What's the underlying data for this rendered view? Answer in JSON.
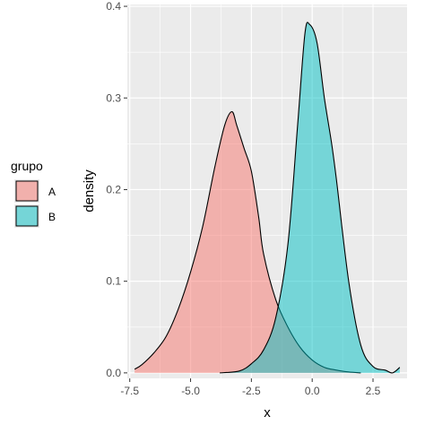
{
  "chart_data": {
    "type": "area",
    "subtype": "density",
    "xlabel": "x",
    "ylabel": "density",
    "xlim": [
      -7.6,
      3.9
    ],
    "ylim": [
      -0.006,
      0.402
    ],
    "x_ticks": [
      -7.5,
      -5.0,
      -2.5,
      0.0,
      2.5
    ],
    "x_tick_labels": [
      "-7.5",
      "-5.0",
      "-2.5",
      "0.0",
      "2.5"
    ],
    "y_ticks": [
      0.0,
      0.1,
      0.2,
      0.3,
      0.4
    ],
    "y_tick_labels": [
      "0.0",
      "0.1",
      "0.2",
      "0.3",
      "0.4"
    ],
    "grid": true,
    "legend": {
      "title": "grupo",
      "position": "left"
    },
    "series": [
      {
        "name": "A",
        "color": "#F8766D",
        "x": [
          -7.3,
          -7.0,
          -6.5,
          -6.0,
          -5.5,
          -5.0,
          -4.5,
          -4.0,
          -3.6,
          -3.3,
          -3.1,
          -2.8,
          -2.5,
          -2.2,
          -2.0,
          -1.5,
          -1.0,
          -0.5,
          0.0,
          0.5,
          1.0,
          1.5,
          2.0
        ],
        "values": [
          0.004,
          0.009,
          0.022,
          0.04,
          0.07,
          0.11,
          0.16,
          0.225,
          0.27,
          0.285,
          0.27,
          0.245,
          0.22,
          0.17,
          0.13,
          0.08,
          0.05,
          0.028,
          0.014,
          0.006,
          0.003,
          0.001,
          0.0
        ]
      },
      {
        "name": "B",
        "color": "#00BFC4",
        "x": [
          -3.8,
          -3.0,
          -2.5,
          -2.0,
          -1.5,
          -1.0,
          -0.6,
          -0.3,
          -0.1,
          0.2,
          0.5,
          0.8,
          1.0,
          1.5,
          2.0,
          2.5,
          3.0,
          3.3,
          3.6
        ],
        "values": [
          0.0,
          0.002,
          0.01,
          0.025,
          0.06,
          0.14,
          0.27,
          0.37,
          0.38,
          0.36,
          0.3,
          0.25,
          0.21,
          0.1,
          0.03,
          0.007,
          0.003,
          0.0,
          0.006
        ]
      }
    ]
  }
}
